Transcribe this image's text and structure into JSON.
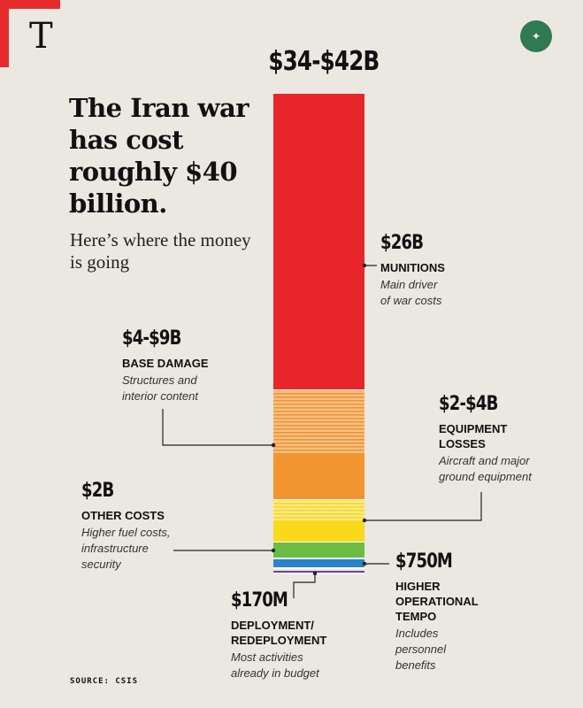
{
  "logo": {
    "letter": "T"
  },
  "headline": "The Iran war has cost roughly $40 billion.",
  "subhead": "Here’s where the money is going",
  "source": "SOURCE: CSIS",
  "colors": {
    "background": "#ebe7e1",
    "brand_red": "#e62b2b",
    "munitions": "#e8252b",
    "base_damage": "#f2952e",
    "equipment_losses": "#f8d91c",
    "other_costs": "#6dbb44",
    "operational_tempo": "#2a83c5",
    "deployment": "#6f3f8f"
  },
  "chart_data": {
    "type": "bar",
    "stacked": true,
    "orientation": "vertical",
    "total_label": "$34-$42B",
    "segments": [
      {
        "key": "munitions",
        "amount": "$26B",
        "value": 26,
        "category": "MUNITIONS",
        "note": "Main driver\nof war costs",
        "color": "#e8252b"
      },
      {
        "key": "base_damage",
        "amount": "$4-$9B",
        "value_min": 4,
        "value_max": 9,
        "category": "BASE DAMAGE",
        "note": "Structures and\ninterior content",
        "color": "#f2952e"
      },
      {
        "key": "equipment_losses",
        "amount": "$2-$4B",
        "value_min": 2,
        "value_max": 4,
        "category": "EQUIPMENT\nLOSSES",
        "note": "Aircraft and major\nground equipment",
        "color": "#f8d91c"
      },
      {
        "key": "other_costs",
        "amount": "$2B",
        "value": 2,
        "category": "OTHER COSTS",
        "note": "Higher fuel costs,\ninfrastructure\nsecurity",
        "color": "#6dbb44"
      },
      {
        "key": "operational_tempo",
        "amount": "$750M",
        "value": 0.75,
        "category": "HIGHER\nOPERATIONAL\nTEMPO",
        "note": "Includes\npersonnel\nbenefits",
        "color": "#2a83c5"
      },
      {
        "key": "deployment",
        "amount": "$170M",
        "value": 0.17,
        "category": "DEPLOYMENT/\nREDEPLOYMENT",
        "note": "Most activities\nalready in budget",
        "color": "#6f3f8f"
      }
    ]
  }
}
